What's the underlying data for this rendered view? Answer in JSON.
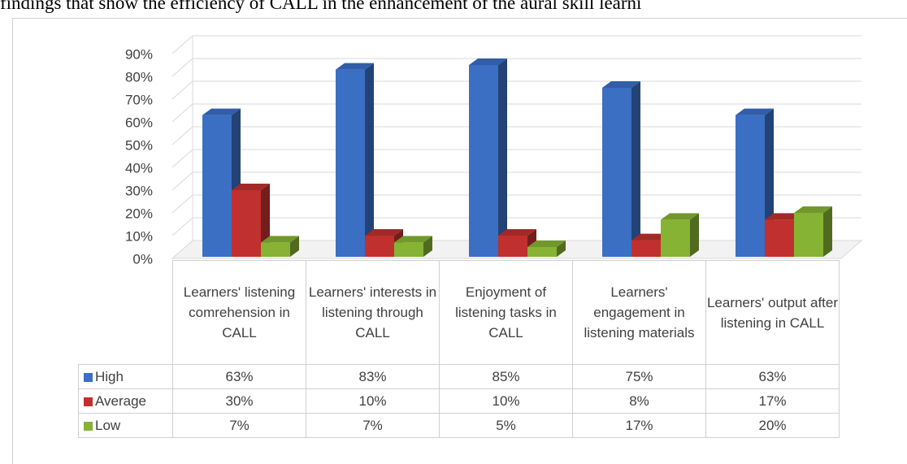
{
  "caption": "findings that show the efficiency of CALL in the enhancement of the aural skill learni",
  "chart_data": {
    "type": "bar3d",
    "categories": [
      "Learners' listening comrehension in CALL",
      "Learners' interests in listening through CALL",
      "Enjoyment of listening tasks in CALL",
      "Learners' engagement in listening materials",
      "Learners' output after listening in CALL"
    ],
    "series": [
      {
        "name": "High",
        "color": "#3a6fc4",
        "values": [
          63,
          83,
          85,
          75,
          63
        ],
        "value_labels": [
          "63%",
          "83%",
          "85%",
          "75%",
          "63%"
        ]
      },
      {
        "name": "Average",
        "color": "#c0302e",
        "values": [
          30,
          10,
          10,
          8,
          17
        ],
        "value_labels": [
          "30%",
          "10%",
          "10%",
          "8%",
          "17%"
        ]
      },
      {
        "name": "Low",
        "color": "#86b334",
        "values": [
          7,
          7,
          5,
          17,
          20
        ],
        "value_labels": [
          "7%",
          "7%",
          "5%",
          "17%",
          "20%"
        ]
      }
    ],
    "ylim": [
      0,
      90
    ],
    "yticks": [
      {
        "value": 0,
        "label": "0%"
      },
      {
        "value": 10,
        "label": "10%"
      },
      {
        "value": 20,
        "label": "20%"
      },
      {
        "value": 30,
        "label": "30%"
      },
      {
        "value": 40,
        "label": "40%"
      },
      {
        "value": 50,
        "label": "50%"
      },
      {
        "value": 60,
        "label": "60%"
      },
      {
        "value": 70,
        "label": "70%"
      },
      {
        "value": 80,
        "label": "80%"
      },
      {
        "value": 90,
        "label": "90%"
      }
    ],
    "grid": true
  }
}
